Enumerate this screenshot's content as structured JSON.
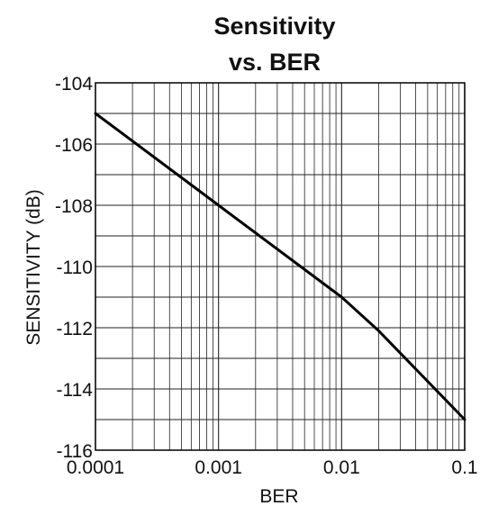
{
  "chart_data": {
    "type": "line",
    "title_lines": [
      "Sensitivity",
      "vs. BER"
    ],
    "xlabel": "BER",
    "ylabel": "SENSITIVITY (dB)",
    "x_scale": "log",
    "xlim": [
      0.0001,
      0.1
    ],
    "ylim": [
      -116,
      -104
    ],
    "x_ticks": [
      {
        "value": 0.0001,
        "label": "0.0001"
      },
      {
        "value": 0.001,
        "label": "0.001"
      },
      {
        "value": 0.01,
        "label": "0.01"
      },
      {
        "value": 0.1,
        "label": "0.1"
      }
    ],
    "y_ticks": [
      {
        "value": -104,
        "label": "-104"
      },
      {
        "value": -106,
        "label": "-106"
      },
      {
        "value": -108,
        "label": "-108"
      },
      {
        "value": -110,
        "label": "-110"
      },
      {
        "value": -112,
        "label": "-112"
      },
      {
        "value": -114,
        "label": "-114"
      },
      {
        "value": -116,
        "label": "-116"
      }
    ],
    "y_minor_step": 1,
    "grid": true,
    "series": [
      {
        "color": "#000000",
        "points": [
          {
            "x": 0.0001,
            "y": -105
          },
          {
            "x": 0.001,
            "y": -108
          },
          {
            "x": 0.01,
            "y": -111
          },
          {
            "x": 0.02,
            "y": -112.1
          },
          {
            "x": 0.1,
            "y": -115
          }
        ]
      }
    ]
  }
}
